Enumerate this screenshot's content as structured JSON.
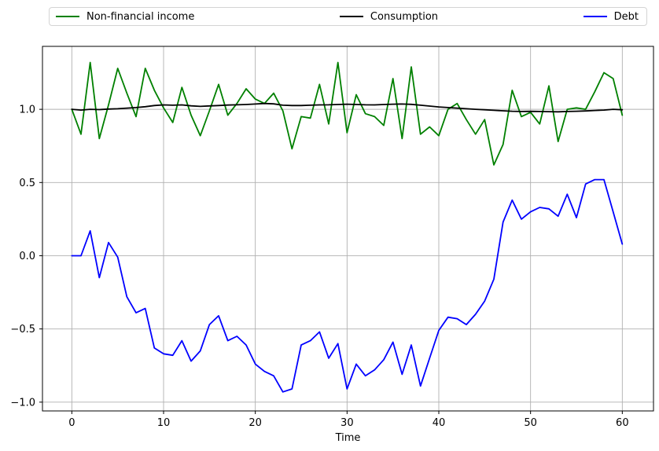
{
  "figure": {
    "background": "#ffffff"
  },
  "legend": {
    "items": [
      {
        "label": "Non-financial income",
        "color": "#008000"
      },
      {
        "label": "Consumption",
        "color": "#000000"
      },
      {
        "label": "Debt",
        "color": "#0000ff"
      }
    ]
  },
  "axes": {
    "xlabel": "Time",
    "xtick_labels": [
      "0",
      "10",
      "20",
      "30",
      "40",
      "50",
      "60"
    ],
    "ytick_labels": [
      "−1.0",
      "−0.5",
      "0.0",
      "0.5",
      "1.0"
    ],
    "spine_color": "#000000",
    "grid_color": "#b0b0b0",
    "tick_label_color": "#000000"
  },
  "chart_data": {
    "type": "line",
    "title": "",
    "xlabel": "Time",
    "ylabel": "",
    "grid": true,
    "legend_position": "top-horizontal-3col",
    "xlim": [
      -3.2,
      63.4
    ],
    "ylim": [
      -1.06,
      1.43
    ],
    "xticks": [
      0,
      10,
      20,
      30,
      40,
      50,
      60
    ],
    "yticks": [
      -1.0,
      -0.5,
      0.0,
      0.5,
      1.0
    ],
    "x": [
      0,
      1,
      2,
      3,
      4,
      5,
      6,
      7,
      8,
      9,
      10,
      11,
      12,
      13,
      14,
      15,
      16,
      17,
      18,
      19,
      20,
      21,
      22,
      23,
      24,
      25,
      26,
      27,
      28,
      29,
      30,
      31,
      32,
      33,
      34,
      35,
      36,
      37,
      38,
      39,
      40,
      41,
      42,
      43,
      44,
      45,
      46,
      47,
      48,
      49,
      50,
      51,
      52,
      53,
      54,
      55,
      56,
      57,
      58,
      59,
      60
    ],
    "series": [
      {
        "name": "Non-financial income",
        "color": "#008000",
        "values": [
          1.0,
          0.83,
          1.32,
          0.8,
          1.03,
          1.28,
          1.11,
          0.95,
          1.28,
          1.13,
          1.01,
          0.91,
          1.15,
          0.96,
          0.82,
          0.99,
          1.17,
          0.96,
          1.04,
          1.14,
          1.07,
          1.04,
          1.11,
          0.99,
          0.73,
          0.95,
          0.94,
          1.17,
          0.9,
          1.32,
          0.84,
          1.1,
          0.97,
          0.95,
          0.89,
          1.21,
          0.8,
          1.29,
          0.83,
          0.88,
          0.82,
          1.0,
          1.04,
          0.93,
          0.83,
          0.93,
          0.62,
          0.76,
          1.13,
          0.95,
          0.98,
          0.9,
          1.16,
          0.78,
          1.0,
          1.01,
          1.0,
          1.12,
          1.25,
          1.21,
          0.96
        ]
      },
      {
        "name": "Consumption",
        "color": "#000000",
        "values": [
          1.0,
          0.995,
          1.0,
          0.998,
          1.002,
          1.004,
          1.008,
          1.012,
          1.018,
          1.026,
          1.03,
          1.028,
          1.03,
          1.024,
          1.02,
          1.023,
          1.026,
          1.029,
          1.031,
          1.033,
          1.036,
          1.04,
          1.037,
          1.028,
          1.026,
          1.026,
          1.028,
          1.03,
          1.031,
          1.033,
          1.035,
          1.033,
          1.031,
          1.03,
          1.033,
          1.035,
          1.036,
          1.034,
          1.028,
          1.022,
          1.016,
          1.012,
          1.008,
          1.004,
          1.0,
          0.997,
          0.993,
          0.99,
          0.987,
          0.985,
          0.986,
          0.985,
          0.984,
          0.983,
          0.985,
          0.987,
          0.989,
          0.992,
          0.995,
          1.0,
          0.997
        ]
      },
      {
        "name": "Debt",
        "color": "#0000ff",
        "values": [
          0.0,
          0.0,
          0.17,
          -0.15,
          0.09,
          -0.01,
          -0.28,
          -0.39,
          -0.36,
          -0.63,
          -0.67,
          -0.68,
          -0.58,
          -0.72,
          -0.65,
          -0.47,
          -0.41,
          -0.58,
          -0.55,
          -0.61,
          -0.74,
          -0.79,
          -0.82,
          -0.93,
          -0.91,
          -0.61,
          -0.58,
          -0.52,
          -0.7,
          -0.6,
          -0.91,
          -0.74,
          -0.82,
          -0.78,
          -0.71,
          -0.59,
          -0.81,
          -0.61,
          -0.89,
          -0.7,
          -0.51,
          -0.42,
          -0.43,
          -0.47,
          -0.4,
          -0.31,
          -0.16,
          0.23,
          0.38,
          0.25,
          0.3,
          0.33,
          0.32,
          0.27,
          0.42,
          0.26,
          0.49,
          0.52,
          0.52,
          0.3,
          0.08
        ]
      }
    ]
  }
}
